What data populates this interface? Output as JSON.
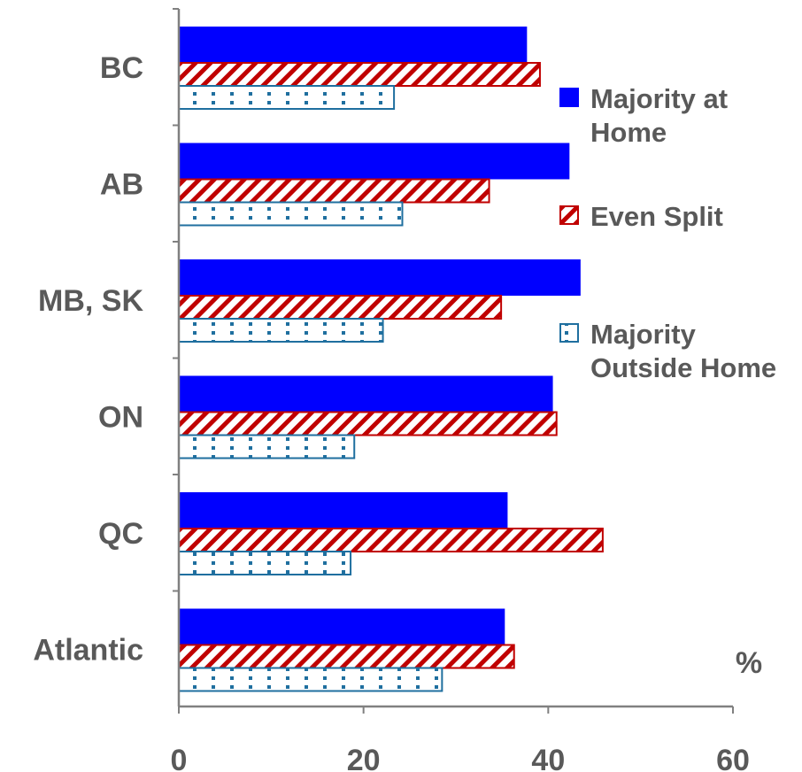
{
  "chart_data": {
    "type": "bar",
    "orientation": "horizontal",
    "categories": [
      "BC",
      "AB",
      "MB, SK",
      "ON",
      "QC",
      "Atlantic"
    ],
    "series": [
      {
        "name": "Majority at Home",
        "values": [
          37.7,
          42.3,
          43.5,
          40.5,
          35.6,
          35.3
        ],
        "color": "#0000ff",
        "pattern": "solid"
      },
      {
        "name": "Even Split",
        "values": [
          39.1,
          33.6,
          34.9,
          40.9,
          45.9,
          36.3
        ],
        "color": "#c00000",
        "pattern": "diagonal-stripes"
      },
      {
        "name": "Majority Outside Home",
        "values": [
          23.3,
          24.2,
          22.1,
          19.0,
          18.6,
          28.5
        ],
        "color": "#1f6f9f",
        "pattern": "dotted"
      }
    ],
    "xlim": [
      0,
      60
    ],
    "xticks": [
      "0",
      "20",
      "40",
      "60"
    ],
    "unit_label": "%",
    "legend_position": "right",
    "grid": false
  }
}
